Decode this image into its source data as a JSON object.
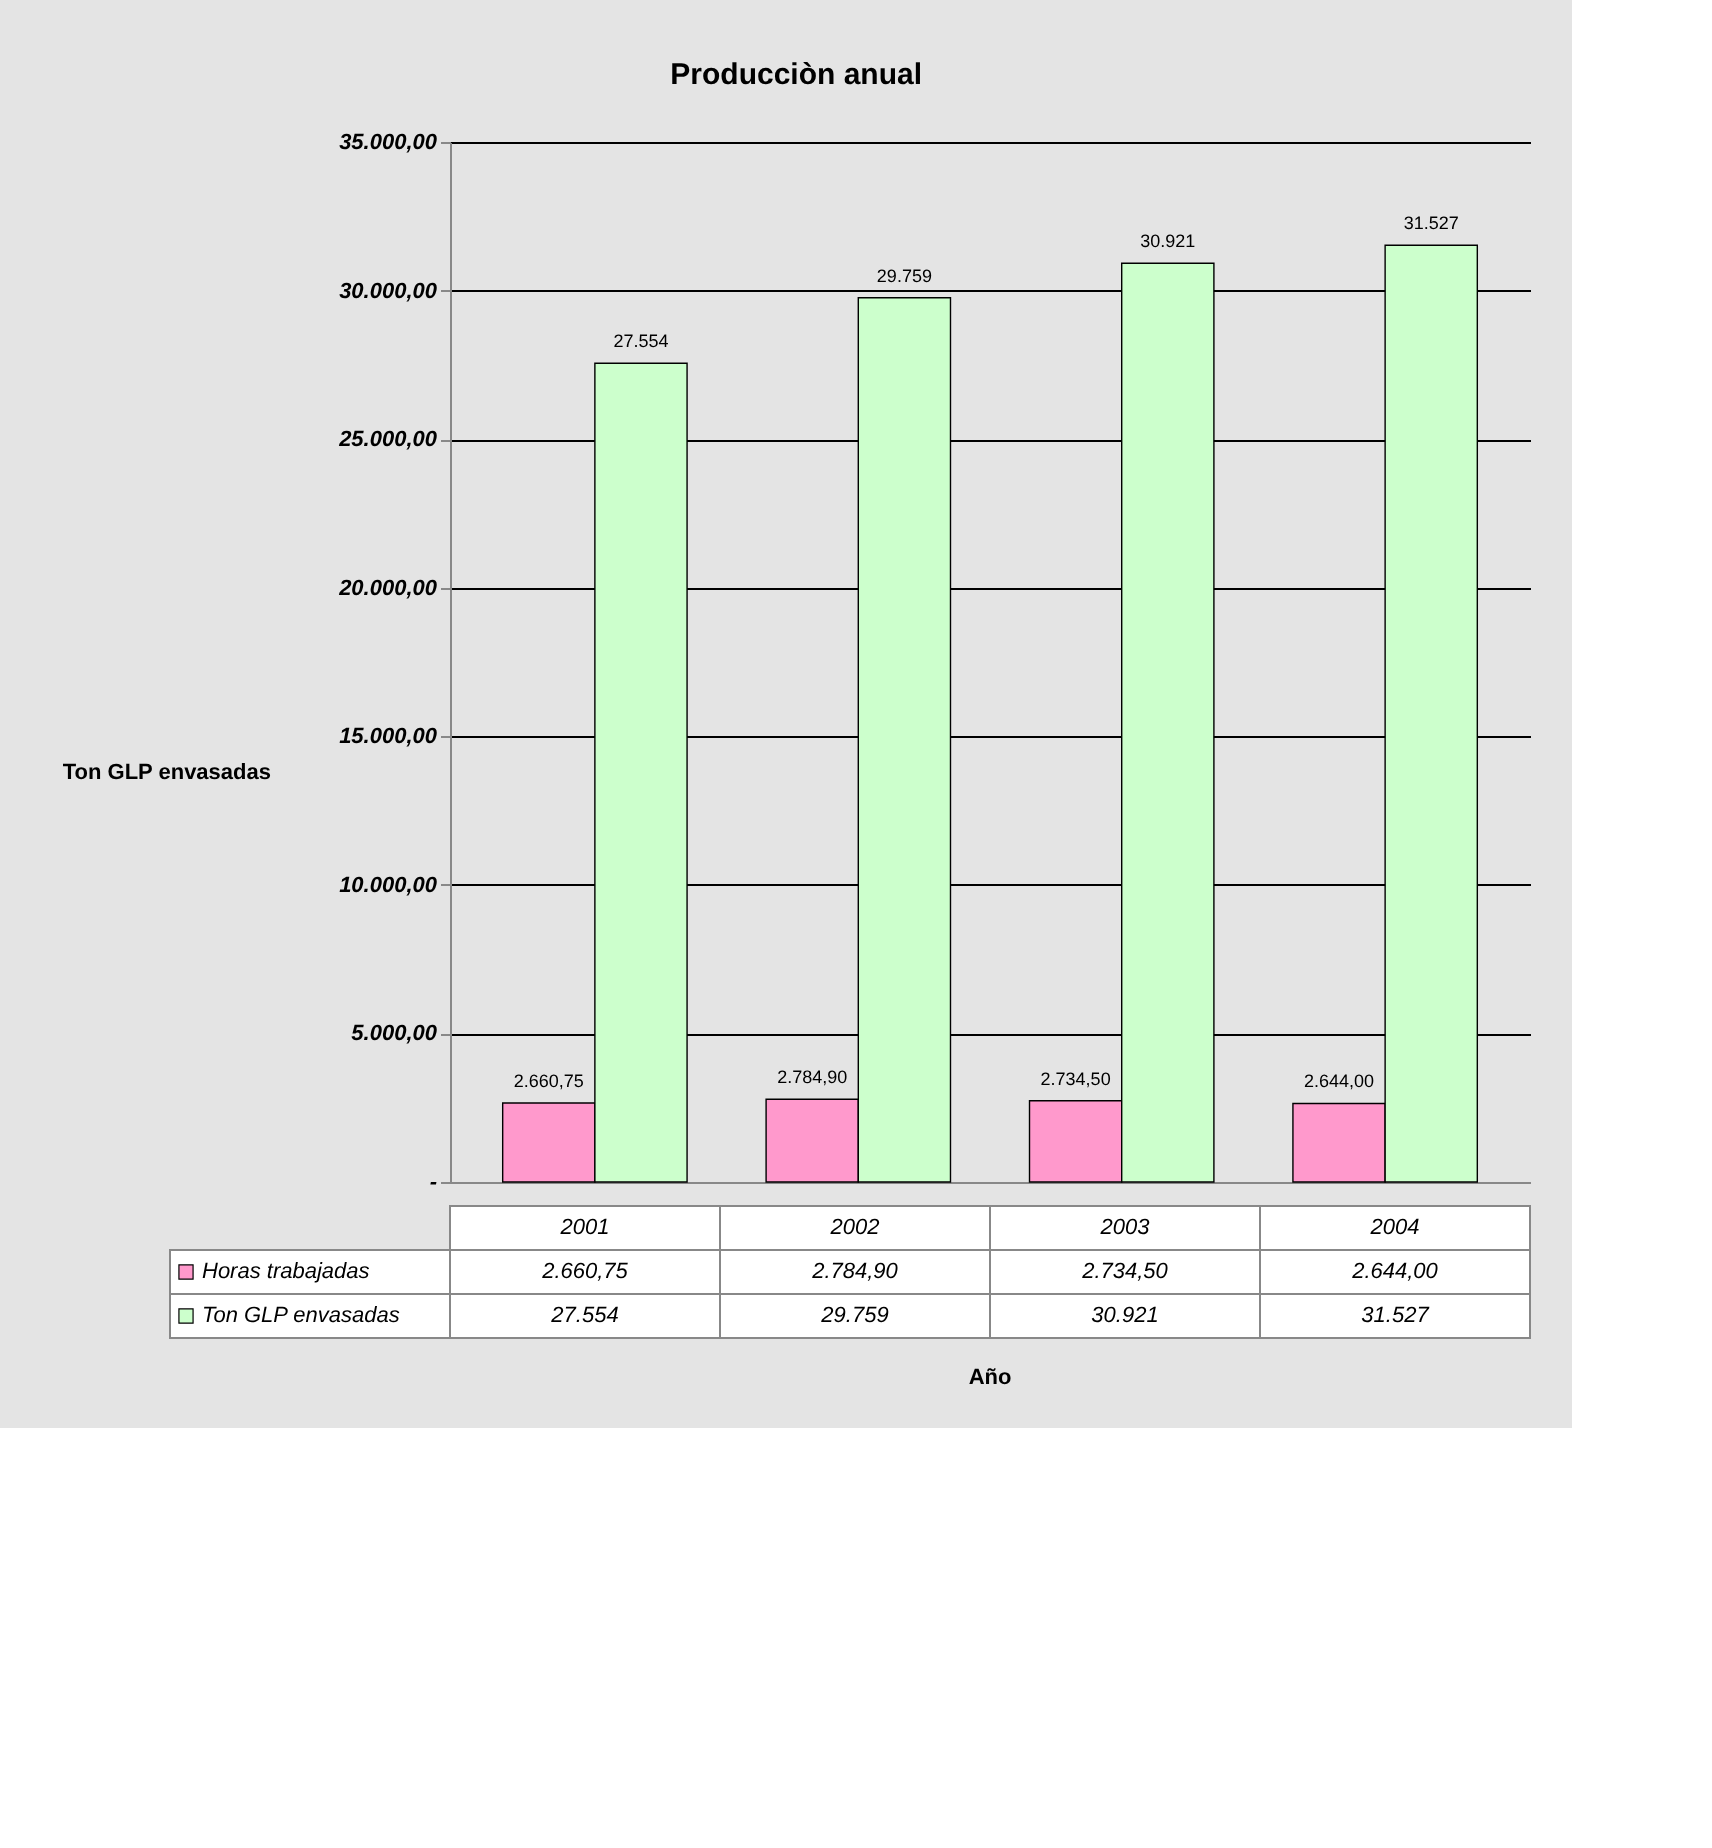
{
  "chart_data": {
    "type": "bar",
    "title": "Producciòn anual",
    "annotations": [
      "Año"
    ],
    "ylabel": "Ton GLP envasadas",
    "categories": [
      "2001",
      "2002",
      "2003",
      "2004"
    ],
    "series": [
      {
        "name": "Horas trabajadas",
        "color": "#ff99cc",
        "values": [
          2660.75,
          2784.9,
          2734.5,
          2644.0
        ],
        "value_labels": [
          "2.660,75",
          "2.784,90",
          "2.734,50",
          "2.644,00"
        ]
      },
      {
        "name": "Ton GLP envasadas",
        "color": "#ccffcc",
        "values": [
          27554,
          29759,
          30921,
          31527
        ],
        "value_labels": [
          "27.554",
          "29.759",
          "30.921",
          "31.527"
        ]
      }
    ],
    "ylim": [
      0,
      35000
    ],
    "yticks": [
      {
        "value": 0,
        "label": "-"
      },
      {
        "value": 5000,
        "label": "5.000,00"
      },
      {
        "value": 10000,
        "label": "10.000,00"
      },
      {
        "value": 15000,
        "label": "15.000,00"
      },
      {
        "value": 20000,
        "label": "20.000,00"
      },
      {
        "value": 25000,
        "label": "25.000,00"
      },
      {
        "value": 30000,
        "label": "30.000,00"
      },
      {
        "value": 35000,
        "label": "35.000,00"
      }
    ],
    "grid": "y",
    "legend": "bottom"
  }
}
